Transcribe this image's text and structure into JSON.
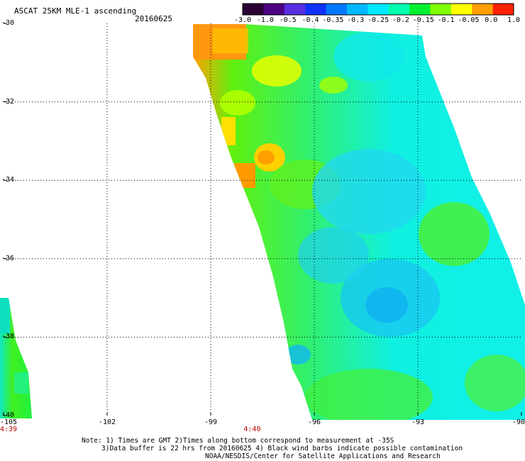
{
  "header": {
    "title": "ASCAT 25KM MLE-1 ascending",
    "date": "20160625"
  },
  "colorbar": {
    "tick_labels": [
      "-3.0",
      "-1.0",
      "-0.5",
      "-0.4",
      "-0.35",
      "-0.3",
      "-0.25",
      "-0.2",
      "-0.15",
      "-0.1",
      "-0.05",
      "0.0",
      "1.0"
    ],
    "colors": [
      "#2a0033",
      "#4b0082",
      "#5a2fe0",
      "#1030ff",
      "#0078ff",
      "#00b8ff",
      "#00e8ff",
      "#00ffb0",
      "#00f030",
      "#80ff00",
      "#ffff00",
      "#ffa000",
      "#ff2000"
    ]
  },
  "axes": {
    "lon_labels": [
      "-105",
      "-102",
      "-99",
      "-96",
      "-93",
      "-90"
    ],
    "lat_labels": [
      "-30",
      "-32",
      "-34",
      "-36",
      "-38",
      "-40"
    ],
    "lon_range": [
      -105,
      -90
    ],
    "lat_range": [
      -40,
      -30
    ]
  },
  "time_labels": [
    {
      "text": "4:39",
      "lon": -105
    },
    {
      "text": "4:40",
      "lon": -97.8
    }
  ],
  "notes": [
    "Note: 1) Times are GMT 2)Times along bottom correspond to measurement at -35S",
    "3)Data buffer is 22 hrs from 20160625 4) Black wind barbs indicate possible contamination",
    "NOAA/NESDIS/Center for Satellite Applications and Research"
  ]
}
